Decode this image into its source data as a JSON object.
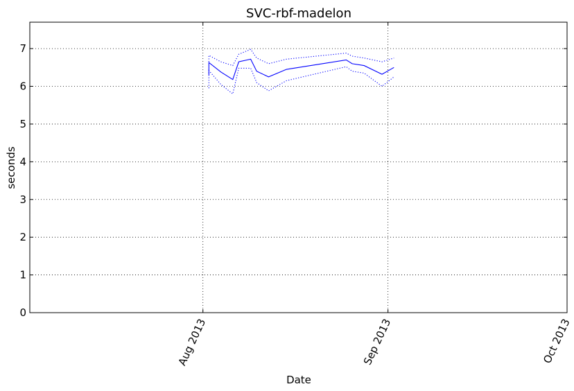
{
  "chart_data": {
    "type": "line",
    "title": "SVC-rbf-madelon",
    "xlabel": "Date",
    "ylabel": "seconds",
    "xlim": [
      "2013-07-03",
      "2013-10-01"
    ],
    "ylim": [
      0,
      7.7
    ],
    "x_ticks": [
      {
        "value": "2013-08-01",
        "label": "Aug 2013"
      },
      {
        "value": "2013-09-01",
        "label": "Sep 2013"
      },
      {
        "value": "2013-10-01",
        "label": "Oct 2013"
      }
    ],
    "y_ticks": [
      0,
      1,
      2,
      3,
      4,
      5,
      6,
      7
    ],
    "grid": true,
    "line_color": "#0000ff",
    "series": [
      {
        "role": "mean",
        "style": "solid",
        "x": [
          "2013-08-02",
          "2013-08-02",
          "2013-08-04",
          "2013-08-06",
          "2013-08-07",
          "2013-08-09",
          "2013-08-10",
          "2013-08-12",
          "2013-08-15",
          "2013-08-25",
          "2013-08-26",
          "2013-08-28",
          "2013-08-31",
          "2013-09-02"
        ],
        "values": [
          6.3,
          6.63,
          6.38,
          6.18,
          6.65,
          6.72,
          6.4,
          6.25,
          6.45,
          6.7,
          6.6,
          6.55,
          6.32,
          6.5
        ]
      },
      {
        "role": "upper",
        "style": "dotted",
        "x": [
          "2013-08-02",
          "2013-08-02",
          "2013-08-04",
          "2013-08-06",
          "2013-08-07",
          "2013-08-09",
          "2013-08-10",
          "2013-08-12",
          "2013-08-15",
          "2013-08-25",
          "2013-08-26",
          "2013-08-28",
          "2013-08-31",
          "2013-09-02"
        ],
        "values": [
          6.65,
          6.82,
          6.65,
          6.55,
          6.85,
          6.98,
          6.75,
          6.6,
          6.72,
          6.88,
          6.8,
          6.75,
          6.65,
          6.75
        ]
      },
      {
        "role": "lower",
        "style": "dotted",
        "x": [
          "2013-08-02",
          "2013-08-02",
          "2013-08-04",
          "2013-08-06",
          "2013-08-07",
          "2013-08-09",
          "2013-08-10",
          "2013-08-12",
          "2013-08-15",
          "2013-08-25",
          "2013-08-26",
          "2013-08-28",
          "2013-08-31",
          "2013-09-02"
        ],
        "values": [
          5.95,
          6.42,
          6.05,
          5.8,
          6.48,
          6.48,
          6.1,
          5.88,
          6.15,
          6.52,
          6.4,
          6.35,
          6.0,
          6.25
        ]
      }
    ]
  }
}
